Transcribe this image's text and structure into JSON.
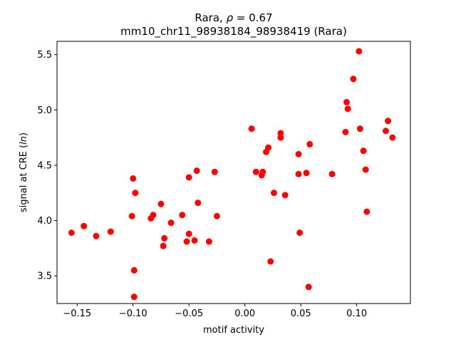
{
  "chart_data": {
    "type": "scatter",
    "title_line1": "Rara, ρ = 0.67",
    "title_line2": "mm10_chr11_98938184_98938419 (Rara)",
    "xlabel": "motif activity",
    "ylabel": "signal at CRE (ln)",
    "xlim": [
      -0.168,
      0.148
    ],
    "ylim": [
      3.25,
      5.62
    ],
    "xticks": [
      -0.15,
      -0.1,
      -0.05,
      0.0,
      0.05,
      0.1
    ],
    "xtick_labels": [
      "−0.15",
      "−0.10",
      "−0.05",
      "0.00",
      "0.05",
      "0.10"
    ],
    "yticks": [
      3.5,
      4.0,
      4.5,
      5.0,
      5.5
    ],
    "ytick_labels": [
      "3.5",
      "4.0",
      "4.5",
      "5.0",
      "5.5"
    ],
    "grid": false,
    "marker_color": "#ff0000",
    "points": [
      {
        "x": -0.155,
        "y": 3.89
      },
      {
        "x": -0.144,
        "y": 3.95
      },
      {
        "x": -0.133,
        "y": 3.86
      },
      {
        "x": -0.12,
        "y": 3.9
      },
      {
        "x": -0.101,
        "y": 4.04
      },
      {
        "x": -0.1,
        "y": 4.38
      },
      {
        "x": -0.099,
        "y": 3.55
      },
      {
        "x": -0.099,
        "y": 3.31
      },
      {
        "x": -0.098,
        "y": 4.25
      },
      {
        "x": -0.084,
        "y": 4.02
      },
      {
        "x": -0.082,
        "y": 4.05
      },
      {
        "x": -0.075,
        "y": 4.15
      },
      {
        "x": -0.073,
        "y": 3.77
      },
      {
        "x": -0.072,
        "y": 3.84
      },
      {
        "x": -0.066,
        "y": 3.98
      },
      {
        "x": -0.056,
        "y": 4.05
      },
      {
        "x": -0.052,
        "y": 3.81
      },
      {
        "x": -0.05,
        "y": 4.39
      },
      {
        "x": -0.05,
        "y": 3.88
      },
      {
        "x": -0.045,
        "y": 3.82
      },
      {
        "x": -0.043,
        "y": 4.45
      },
      {
        "x": -0.042,
        "y": 4.16
      },
      {
        "x": -0.032,
        "y": 3.81
      },
      {
        "x": -0.027,
        "y": 4.44
      },
      {
        "x": -0.025,
        "y": 4.04
      },
      {
        "x": 0.006,
        "y": 4.83
      },
      {
        "x": 0.01,
        "y": 4.44
      },
      {
        "x": 0.015,
        "y": 4.41
      },
      {
        "x": 0.016,
        "y": 4.44
      },
      {
        "x": 0.019,
        "y": 4.62
      },
      {
        "x": 0.021,
        "y": 4.66
      },
      {
        "x": 0.023,
        "y": 3.63
      },
      {
        "x": 0.026,
        "y": 4.25
      },
      {
        "x": 0.032,
        "y": 4.79
      },
      {
        "x": 0.032,
        "y": 4.75
      },
      {
        "x": 0.036,
        "y": 4.23
      },
      {
        "x": 0.048,
        "y": 4.6
      },
      {
        "x": 0.048,
        "y": 4.42
      },
      {
        "x": 0.049,
        "y": 3.89
      },
      {
        "x": 0.055,
        "y": 4.43
      },
      {
        "x": 0.057,
        "y": 3.4
      },
      {
        "x": 0.058,
        "y": 4.69
      },
      {
        "x": 0.078,
        "y": 4.42
      },
      {
        "x": 0.09,
        "y": 4.8
      },
      {
        "x": 0.091,
        "y": 5.07
      },
      {
        "x": 0.092,
        "y": 5.01
      },
      {
        "x": 0.097,
        "y": 5.28
      },
      {
        "x": 0.102,
        "y": 5.53
      },
      {
        "x": 0.103,
        "y": 4.83
      },
      {
        "x": 0.106,
        "y": 4.63
      },
      {
        "x": 0.108,
        "y": 4.46
      },
      {
        "x": 0.109,
        "y": 4.08
      },
      {
        "x": 0.126,
        "y": 4.81
      },
      {
        "x": 0.128,
        "y": 4.9
      },
      {
        "x": 0.132,
        "y": 4.75
      }
    ]
  }
}
